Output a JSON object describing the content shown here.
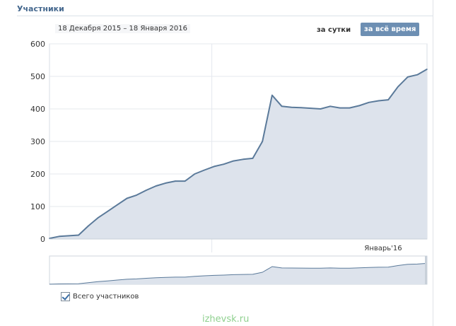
{
  "panel": {
    "title": "Участники",
    "date_range": "18 Декабря 2015 – 18 Января 2016",
    "period_daily": "за сутки",
    "period_all": "за всё время"
  },
  "legend": {
    "label": "Всего участников",
    "checked": true
  },
  "watermark": "izhevsk.ru",
  "colors": {
    "line": "#5b7a9a",
    "fill": "#dde3ec",
    "grid": "#e4e8ee",
    "accent": "#6d8fb3"
  },
  "chart_data": {
    "type": "area",
    "series": [
      {
        "name": "Всего участников",
        "values": [
          2,
          8,
          10,
          12,
          40,
          65,
          85,
          105,
          125,
          135,
          150,
          163,
          172,
          178,
          178,
          200,
          212,
          223,
          230,
          240,
          245,
          248,
          300,
          442,
          408,
          405,
          404,
          402,
          400,
          408,
          403,
          403,
          410,
          420,
          425,
          428,
          468,
          498,
          505,
          522
        ]
      }
    ],
    "ylim": [
      0,
      600
    ],
    "yticks": [
      0,
      100,
      200,
      300,
      400,
      500,
      600
    ],
    "x_tick_label": "Январь'16",
    "grid": true
  }
}
